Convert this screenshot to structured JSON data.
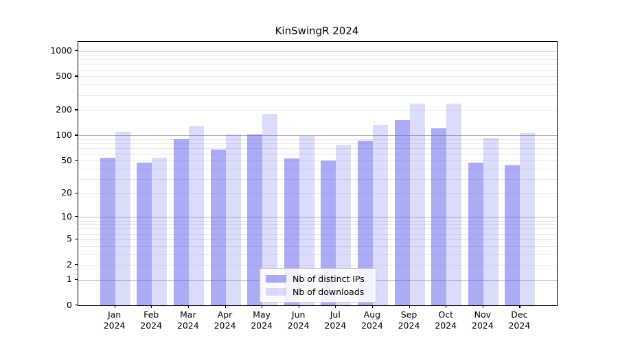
{
  "chart_data": {
    "type": "bar",
    "title": "KinSwingR 2024",
    "categories": [
      "Jan",
      "Feb",
      "Mar",
      "Apr",
      "May",
      "Jun",
      "Jul",
      "Aug",
      "Sep",
      "Oct",
      "Nov",
      "Dec"
    ],
    "year_label": "2024",
    "series": [
      {
        "name": "Nb of distinct IPs",
        "values": [
          54,
          47,
          90,
          68,
          102,
          53,
          50,
          86,
          151,
          121,
          47,
          44
        ],
        "color": "rgba(89,89,237,0.5)"
      },
      {
        "name": "Nb of downloads",
        "values": [
          111,
          54,
          129,
          103,
          180,
          98,
          78,
          133,
          238,
          238,
          94,
          106
        ],
        "color": "rgba(89,89,237,0.22)"
      }
    ],
    "y_axis": {
      "scale": "log10(v+1)",
      "range": [
        0,
        1000
      ],
      "tick_labels": [
        0,
        1,
        2,
        5,
        10,
        20,
        50,
        100,
        200,
        500,
        1000
      ],
      "major_gridlines": [
        1,
        10,
        100,
        1000
      ],
      "minor_gridline_multiples": [
        2,
        3,
        4,
        5,
        6,
        7,
        8,
        9
      ],
      "minor_gridline_decades": [
        1,
        10,
        100
      ]
    },
    "xlabel": "",
    "ylabel": "",
    "grid": true,
    "legend": {
      "position": "lower center",
      "entries": [
        "Nb of distinct IPs",
        "Nb of downloads"
      ]
    }
  },
  "colors": {
    "bar_dark": "rgba(89,89,237,0.5)",
    "bar_light": "rgba(89,89,237,0.22)",
    "major_grid": "#b3b3b3",
    "minor_grid": "#e7e7e7",
    "spine": "#000000",
    "text": "#000000",
    "background": "#ffffff"
  }
}
